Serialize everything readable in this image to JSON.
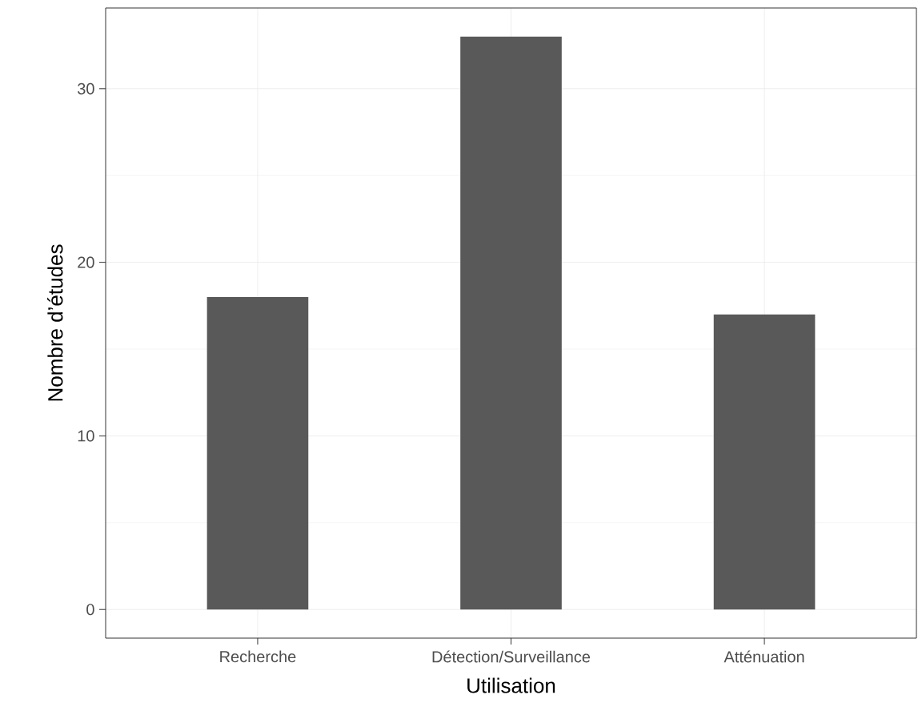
{
  "chart_data": {
    "type": "bar",
    "xlabel": "Utilisation",
    "ylabel": "Nombre d’études",
    "categories": [
      "Recherche",
      "Détection/Surveillance",
      "Atténuation"
    ],
    "values": [
      18,
      33,
      17
    ],
    "color": "#595959",
    "ylim": [
      -1.65,
      34.65
    ],
    "yticks": [
      0,
      10,
      20,
      30
    ],
    "grid": true
  }
}
